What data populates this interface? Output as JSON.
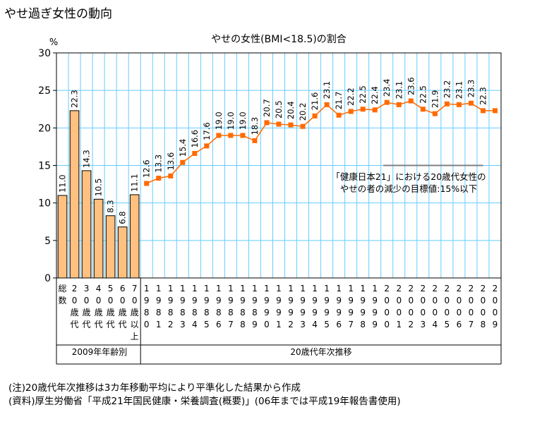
{
  "page_title": "やせ過ぎ女性の動向",
  "colors": {
    "bar_fill": "#ffc080",
    "line": "#ff6a00",
    "marker": "#ff6a00",
    "grid": "#66ccff",
    "target_line": "#808080"
  },
  "chart_data": {
    "type": "bar+line",
    "title": "やせの女性(BMI<18.5)の割合",
    "y_unit": "%",
    "ylim": [
      0,
      30
    ],
    "yticks": [
      "0",
      "5",
      "10",
      "15",
      "20",
      "25",
      "30"
    ],
    "grid": true,
    "bars": {
      "group_label": "2009年年齢別",
      "categories": [
        [
          "総",
          "数"
        ],
        [
          "2",
          "0",
          "歳",
          "代"
        ],
        [
          "3",
          "0",
          "歳",
          "代"
        ],
        [
          "4",
          "0",
          "歳",
          "代"
        ],
        [
          "5",
          "0",
          "歳",
          "代"
        ],
        [
          "6",
          "0",
          "歳",
          "代"
        ],
        [
          "7",
          "0",
          "歳",
          "以",
          "上"
        ]
      ],
      "values": [
        11.0,
        22.3,
        14.3,
        10.5,
        8.3,
        6.8,
        11.1
      ],
      "labels": [
        "11.0",
        "22.3",
        "14.3",
        "10.5",
        "8.3",
        "6.8",
        "11.1"
      ]
    },
    "line": {
      "group_label": "20歳代年次推移",
      "years": [
        "1980",
        "1981",
        "1982",
        "1983",
        "1984",
        "1985",
        "1986",
        "1987",
        "1988",
        "1989",
        "1990",
        "1991",
        "1992",
        "1993",
        "1994",
        "1995",
        "1996",
        "1997",
        "1998",
        "1999",
        "2000",
        "2001",
        "2002",
        "2003",
        "2004",
        "2005",
        "2006",
        "2007",
        "2008",
        "2009"
      ],
      "values": [
        12.6,
        13.3,
        13.6,
        15.4,
        16.6,
        17.6,
        19.0,
        19.0,
        19.0,
        18.3,
        20.7,
        20.5,
        20.4,
        20.2,
        21.6,
        23.1,
        21.7,
        22.2,
        22.5,
        22.4,
        23.4,
        23.1,
        23.6,
        22.5,
        21.9,
        23.2,
        23.1,
        23.3,
        22.3,
        22.3
      ],
      "labels": [
        "12.6",
        "13.3",
        "13.6",
        "15.4",
        "16.6",
        "17.6",
        "19.0",
        "19.0",
        "19.0",
        "18.3",
        "20.7",
        "20.5",
        "20.4",
        "20.2",
        "21.6",
        "23.1",
        "21.7",
        "22.2",
        "22.5",
        "22.4",
        "23.4",
        "23.1",
        "23.6",
        "22.5",
        "21.9",
        "23.2",
        "23.1",
        "23.3",
        "22.3",
        ""
      ]
    },
    "target": {
      "value": 15,
      "x_range": [
        "2000",
        "2008"
      ],
      "annotation": [
        "「健康日本21」における20歳代女性の",
        "やせの者の減少の目標値:15%以下"
      ]
    }
  },
  "notes": [
    "(注)20歳代年次推移は3カ年移動平均により平準化した結果から作成",
    "(資料)厚生労働省「平成21年国民健康・栄養調査(概要)」(06年までは平成19年報告書使用)"
  ]
}
